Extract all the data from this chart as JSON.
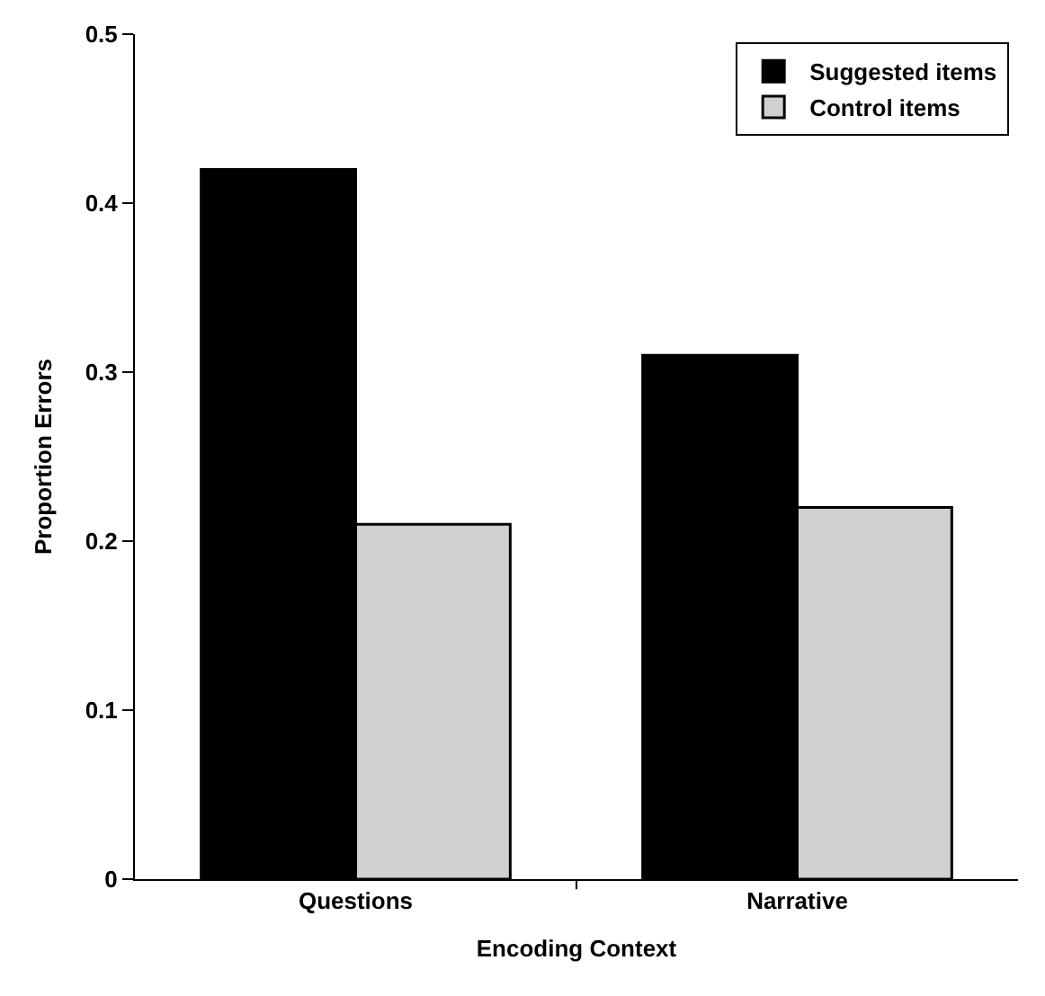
{
  "chart_data": {
    "type": "bar",
    "xlabel": "Encoding Context",
    "ylabel": "Proportion Errors",
    "categories": [
      "Questions",
      "Narrative"
    ],
    "series": [
      {
        "name": "Suggested items",
        "color": "#000000",
        "values": [
          0.42,
          0.31
        ]
      },
      {
        "name": "Control items",
        "color": "#d0d0d0",
        "values": [
          0.21,
          0.22
        ]
      }
    ],
    "ylim": [
      0,
      0.5
    ],
    "yticks": [
      0,
      0.1,
      0.2,
      0.3,
      0.4,
      0.5
    ],
    "legend": "top right"
  }
}
